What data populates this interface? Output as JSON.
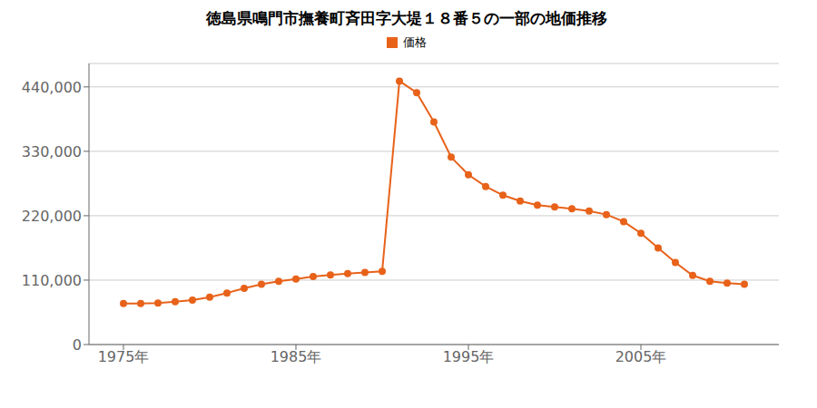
{
  "chart_data": {
    "type": "line",
    "title": "徳島県鳴門市撫養町斉田字大堤１８番５の一部の地価推移",
    "x": [
      1975,
      1976,
      1977,
      1978,
      1979,
      1980,
      1981,
      1982,
      1983,
      1984,
      1985,
      1986,
      1987,
      1988,
      1989,
      1990,
      1991,
      1992,
      1993,
      1994,
      1995,
      1996,
      1997,
      1998,
      1999,
      2000,
      2001,
      2002,
      2003,
      2004,
      2005,
      2006,
      2007,
      2008,
      2009,
      2010,
      2011
    ],
    "series": [
      {
        "name": "価格",
        "color": "#E8621A",
        "marker": "circle",
        "values": [
          70000,
          70000,
          71000,
          73000,
          76000,
          81000,
          88000,
          96000,
          103000,
          108000,
          112000,
          116000,
          119000,
          121000,
          123000,
          125000,
          450000,
          430000,
          380000,
          320000,
          290000,
          270000,
          255000,
          245000,
          238000,
          235000,
          232000,
          228000,
          222000,
          210000,
          190000,
          165000,
          140000,
          118000,
          108000,
          105000,
          103000
        ]
      }
    ],
    "xlim": [
      1973,
      2013
    ],
    "xticks": [
      {
        "value": 1975,
        "label": "1975年"
      },
      {
        "value": 1985,
        "label": "1985年"
      },
      {
        "value": 1995,
        "label": "1995年"
      },
      {
        "value": 2005,
        "label": "2005年"
      }
    ],
    "ylim": [
      0,
      480000
    ],
    "yticks": [
      0,
      {
        "value": 110000,
        "label": "110,000"
      },
      {
        "value": 220000,
        "label": "220,000"
      },
      {
        "value": 330000,
        "label": "330,000"
      },
      {
        "value": 440000,
        "label": "440,000"
      }
    ],
    "grid": true,
    "legend": "top"
  }
}
